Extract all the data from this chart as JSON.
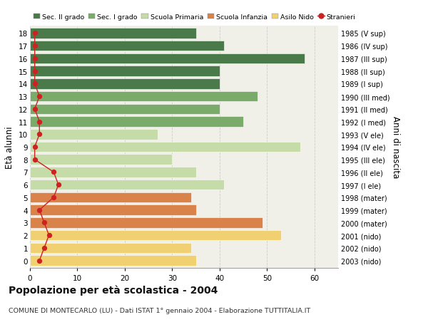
{
  "ages": [
    18,
    17,
    16,
    15,
    14,
    13,
    12,
    11,
    10,
    9,
    8,
    7,
    6,
    5,
    4,
    3,
    2,
    1,
    0
  ],
  "bar_values": [
    35,
    41,
    58,
    40,
    40,
    48,
    40,
    45,
    27,
    57,
    30,
    35,
    41,
    34,
    35,
    49,
    53,
    34,
    35
  ],
  "stranieri_values": [
    1,
    1,
    1,
    1,
    1,
    2,
    1,
    2,
    2,
    1,
    1,
    5,
    6,
    5,
    2,
    3,
    4,
    3,
    2
  ],
  "right_labels": [
    "1985 (V sup)",
    "1986 (IV sup)",
    "1987 (III sup)",
    "1988 (II sup)",
    "1989 (I sup)",
    "1990 (III med)",
    "1991 (II med)",
    "1992 (I med)",
    "1993 (V ele)",
    "1994 (IV ele)",
    "1995 (III ele)",
    "1996 (II ele)",
    "1997 (I ele)",
    "1998 (mater)",
    "1999 (mater)",
    "2000 (mater)",
    "2001 (nido)",
    "2002 (nido)",
    "2003 (nido)"
  ],
  "bar_colors": [
    "#4a7a4a",
    "#4a7a4a",
    "#4a7a4a",
    "#4a7a4a",
    "#4a7a4a",
    "#7aab6a",
    "#7aab6a",
    "#7aab6a",
    "#c5dba8",
    "#c5dba8",
    "#c5dba8",
    "#c5dba8",
    "#c5dba8",
    "#d9834a",
    "#d9834a",
    "#d9834a",
    "#f0d070",
    "#f0d070",
    "#f0d070"
  ],
  "legend_labels": [
    "Sec. II grado",
    "Sec. I grado",
    "Scuola Primaria",
    "Scuola Infanzia",
    "Asilo Nido",
    "Stranieri"
  ],
  "legend_colors": [
    "#4a7a4a",
    "#7aab6a",
    "#c5dba8",
    "#d9834a",
    "#f0d070",
    "#cc2222"
  ],
  "ylabel": "Età alunni",
  "right_ylabel": "Anni di nascita",
  "title": "Popolazione per età scolastica - 2004",
  "subtitle": "COMUNE DI MONTECARLO (LU) - Dati ISTAT 1° gennaio 2004 - Elaborazione TUTTITALIA.IT",
  "xlim": [
    0,
    65
  ],
  "xticks": [
    0,
    10,
    20,
    30,
    40,
    50,
    60
  ],
  "stranieri_color": "#cc2222",
  "plot_bg": "#f0f0e8",
  "fig_bg": "#ffffff"
}
